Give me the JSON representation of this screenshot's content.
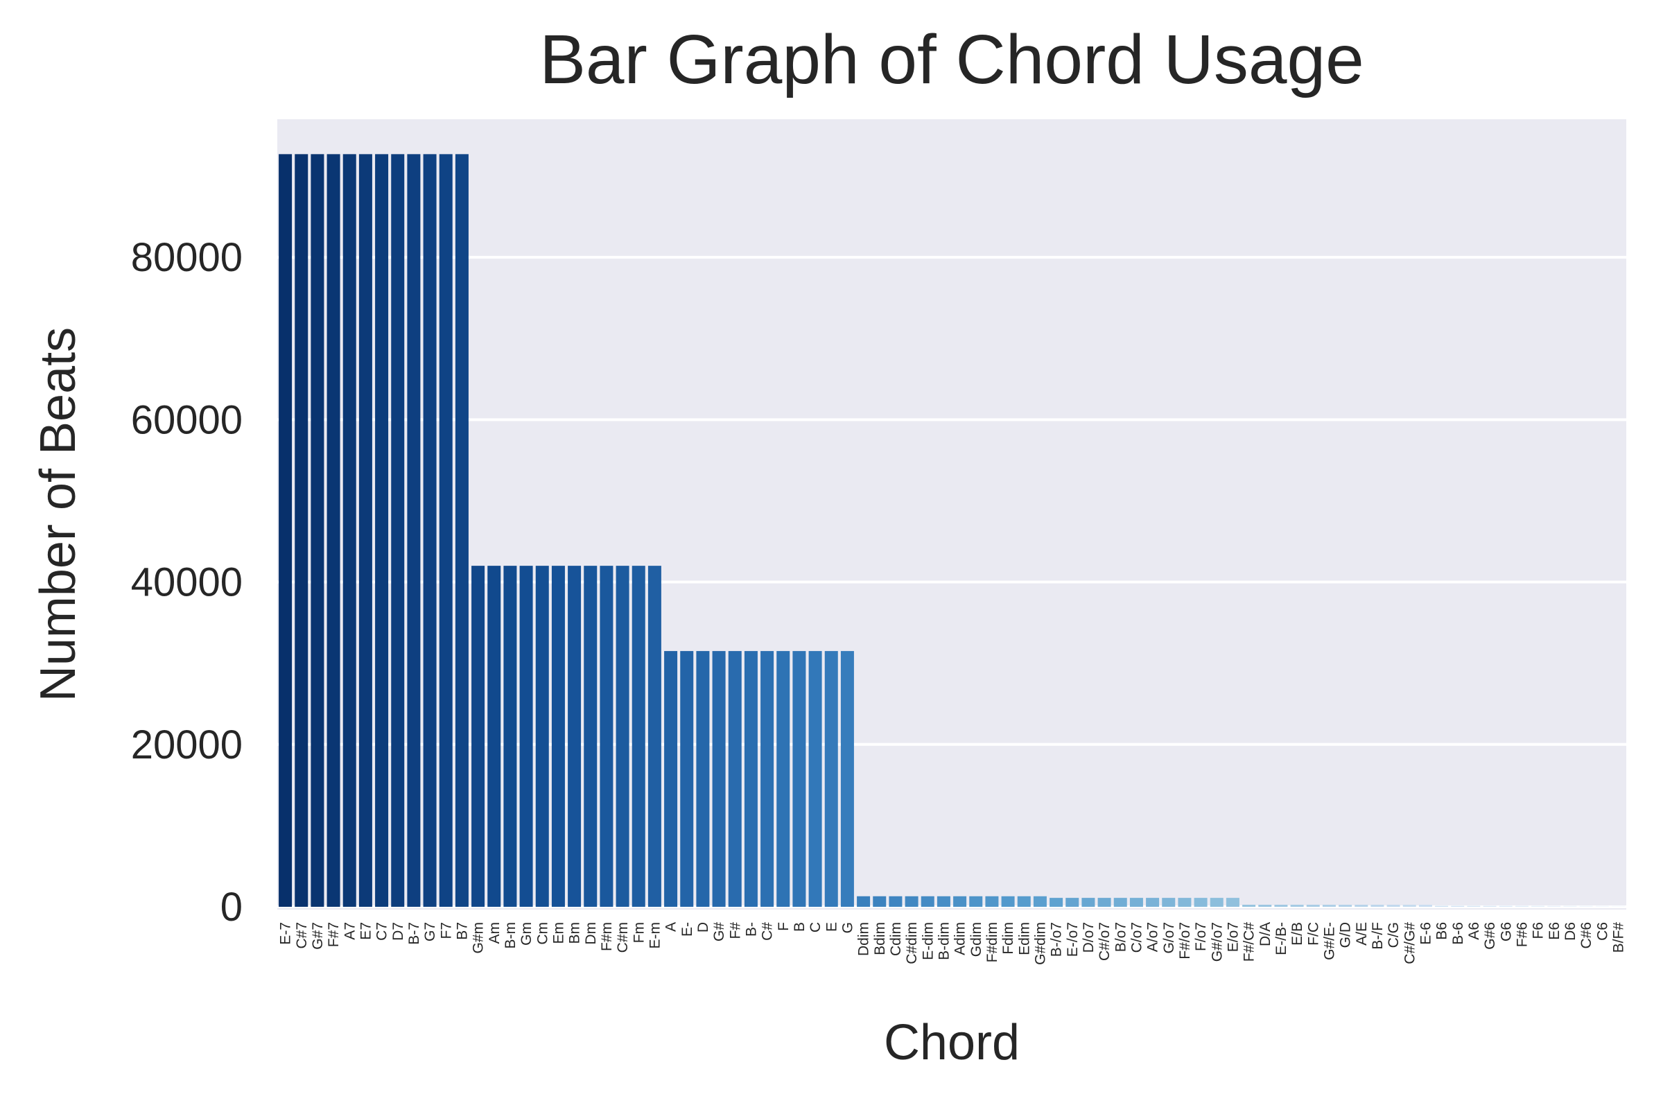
{
  "chart_data": {
    "type": "bar",
    "title": "Bar Graph of Chord Usage",
    "xlabel": "Chord",
    "ylabel": "Number of Beats",
    "ylim": [
      0,
      97000
    ],
    "yticks": [
      0,
      20000,
      40000,
      60000,
      80000
    ],
    "grid": "y",
    "background": "#EAEAF2",
    "palette": "Blues_r",
    "categories": [
      "E-7",
      "C#7",
      "G#7",
      "F#7",
      "A7",
      "E7",
      "C7",
      "D7",
      "B-7",
      "G7",
      "F7",
      "B7",
      "G#m",
      "Am",
      "B-m",
      "Gm",
      "Cm",
      "Em",
      "Bm",
      "Dm",
      "F#m",
      "C#m",
      "Fm",
      "E-m",
      "A",
      "E-",
      "D",
      "G#",
      "F#",
      "B-",
      "C#",
      "F",
      "B",
      "C",
      "E",
      "G",
      "Ddim",
      "Bdim",
      "Cdim",
      "C#dim",
      "E-dim",
      "B-dim",
      "Adim",
      "Gdim",
      "F#dim",
      "Fdim",
      "Edim",
      "G#dim",
      "B-/o7",
      "E-/o7",
      "D/o7",
      "C#/o7",
      "B/o7",
      "C/o7",
      "A/o7",
      "G/o7",
      "F#/o7",
      "F/o7",
      "G#/o7",
      "E/o7",
      "F#/C#",
      "D/A",
      "E-/B-",
      "E/B",
      "F/C",
      "G#/E-",
      "G/D",
      "A/E",
      "B-/F",
      "C/G",
      "C#/G#",
      "E-6",
      "B6",
      "B-6",
      "A6",
      "G#6",
      "G6",
      "F#6",
      "F6",
      "E6",
      "D6",
      "C#6",
      "C6",
      "B/F#"
    ],
    "values": [
      92700,
      92700,
      92700,
      92700,
      92700,
      92700,
      92700,
      92700,
      92700,
      92700,
      92700,
      92700,
      42000,
      42000,
      42000,
      42000,
      42000,
      42000,
      42000,
      42000,
      42000,
      42000,
      42000,
      42000,
      31500,
      31500,
      31500,
      31500,
      31500,
      31500,
      31500,
      31500,
      31500,
      31500,
      31500,
      31500,
      1300,
      1300,
      1300,
      1300,
      1300,
      1300,
      1300,
      1300,
      1300,
      1300,
      1300,
      1300,
      1100,
      1100,
      1100,
      1100,
      1100,
      1100,
      1100,
      1100,
      1100,
      1100,
      1100,
      1100,
      250,
      250,
      250,
      250,
      250,
      250,
      250,
      250,
      250,
      250,
      250,
      250,
      120,
      120,
      120,
      120,
      120,
      120,
      120,
      120,
      120,
      120,
      120,
      120
    ]
  }
}
